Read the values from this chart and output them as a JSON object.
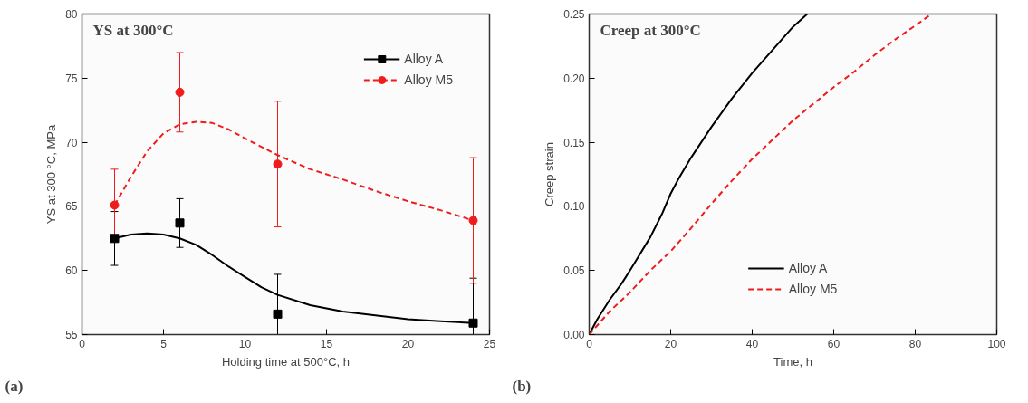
{
  "chart_data": [
    {
      "type": "scatter",
      "title": "YS at 300°C",
      "xlabel": "Holding time at 500°C, h",
      "ylabel": "YS at 300 °C, MPa",
      "annotations": [
        "(a)"
      ],
      "xlim": [
        0,
        25
      ],
      "ylim": [
        55,
        80
      ],
      "xticks": [
        0,
        5,
        10,
        15,
        20,
        25
      ],
      "yticks": [
        55,
        60,
        65,
        70,
        75,
        80
      ],
      "grid": false,
      "legend": "top right",
      "series": [
        {
          "name": "Alloy A",
          "type": "scatter",
          "marker": "square",
          "color": "#000000",
          "x": [
            2,
            6,
            12,
            24
          ],
          "values": [
            62.5,
            63.7,
            56.6,
            55.9
          ],
          "errors": [
            [
              60.4,
              64.6
            ],
            [
              61.8,
              65.6
            ],
            [
              55,
              59.7
            ],
            [
              55,
              59.4
            ]
          ]
        },
        {
          "name": "Alloy M5",
          "type": "scatter",
          "marker": "circle",
          "color": "#ee1c1c",
          "x": [
            2,
            6,
            12,
            24
          ],
          "values": [
            65.1,
            73.9,
            68.3,
            63.9
          ],
          "errors": [
            [
              62.3,
              67.9
            ],
            [
              70.8,
              77.0
            ],
            [
              63.4,
              73.2
            ],
            [
              59.0,
              68.8
            ]
          ]
        },
        {
          "type": "line",
          "line_style": "solid",
          "color": "#000000",
          "x": [
            2,
            3,
            4,
            5,
            6,
            7,
            8,
            9,
            10,
            11,
            12,
            14,
            16,
            18,
            20,
            22,
            24
          ],
          "values": [
            62.5,
            62.8,
            62.9,
            62.8,
            62.5,
            62.0,
            61.2,
            60.3,
            59.5,
            58.7,
            58.1,
            57.3,
            56.8,
            56.5,
            56.2,
            56.05,
            55.9
          ]
        },
        {
          "type": "line",
          "line_style": "dashed",
          "color": "#ee1c1c",
          "x": [
            2,
            3,
            4,
            5,
            6,
            7,
            8,
            9,
            10,
            12,
            14,
            16,
            18,
            20,
            22,
            24
          ],
          "values": [
            65.1,
            67.3,
            69.3,
            70.7,
            71.4,
            71.6,
            71.5,
            71.0,
            70.3,
            69.0,
            67.9,
            67.1,
            66.2,
            65.4,
            64.7,
            63.9
          ]
        }
      ]
    },
    {
      "type": "line",
      "title": "Creep at 300°C",
      "xlabel": "Time, h",
      "ylabel": "Creep strain",
      "annotations": [
        "(b)"
      ],
      "xlim": [
        0,
        100
      ],
      "ylim": [
        0,
        0.25
      ],
      "xticks": [
        0,
        20,
        40,
        60,
        80,
        100
      ],
      "yticks": [
        {
          "value": 0,
          "label": "0.00"
        },
        {
          "value": 0.05,
          "label": "0.05"
        },
        {
          "value": 0.1,
          "label": "0.10"
        },
        {
          "value": 0.15,
          "label": "0.15"
        },
        {
          "value": 0.2,
          "label": "0.20"
        },
        {
          "value": 0.25,
          "label": "0.25"
        }
      ],
      "grid": false,
      "legend": "bottom",
      "marker": "none",
      "series": [
        {
          "name": "Alloy A",
          "line_style": "solid",
          "color": "#000000",
          "x": [
            0,
            2,
            5,
            8,
            10,
            15,
            18,
            20,
            22,
            25,
            30,
            35,
            40,
            45,
            50,
            53.5
          ],
          "values": [
            0,
            0.012,
            0.027,
            0.04,
            0.05,
            0.076,
            0.095,
            0.11,
            0.122,
            0.138,
            0.162,
            0.184,
            0.204,
            0.222,
            0.24,
            0.25
          ]
        },
        {
          "name": "Alloy M5",
          "line_style": "dashed",
          "color": "#ee1c1c",
          "x": [
            0,
            5,
            10,
            15,
            20,
            25,
            30,
            35,
            40,
            45,
            50,
            55,
            60,
            65,
            70,
            75,
            80,
            84
          ],
          "values": [
            0,
            0.018,
            0.033,
            0.05,
            0.065,
            0.083,
            0.102,
            0.12,
            0.137,
            0.152,
            0.167,
            0.18,
            0.193,
            0.205,
            0.218,
            0.23,
            0.241,
            0.25
          ]
        }
      ]
    }
  ]
}
